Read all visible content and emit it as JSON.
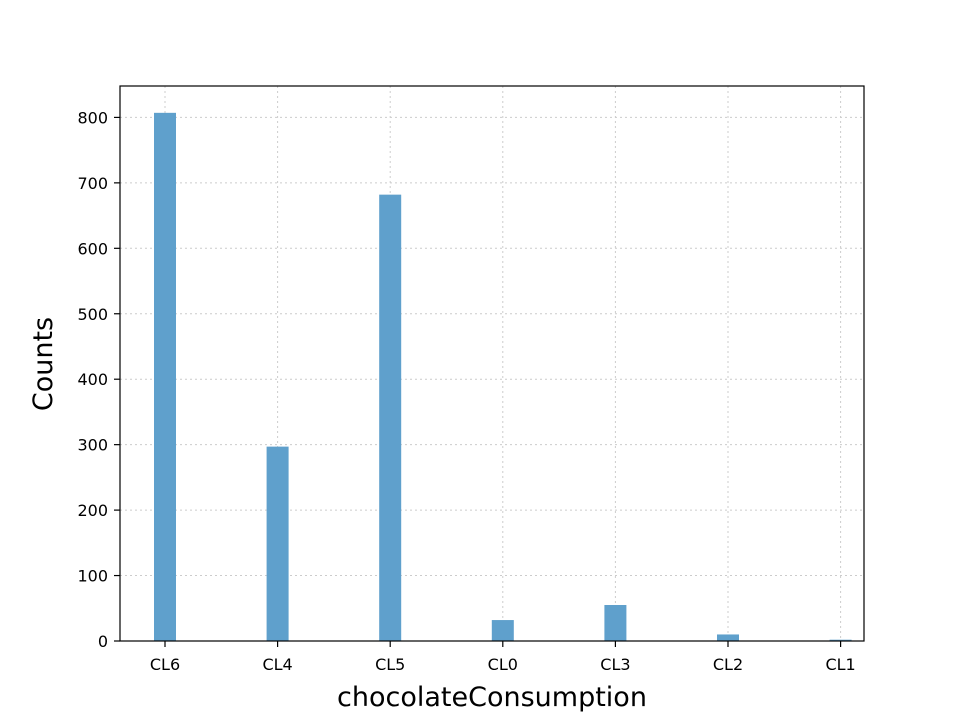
{
  "chart_data": {
    "type": "bar",
    "title": "",
    "xlabel": "chocolateConsumption",
    "ylabel": "Counts",
    "categories": [
      "CL6",
      "CL4",
      "CL5",
      "CL0",
      "CL3",
      "CL2",
      "CL1"
    ],
    "values": [
      807,
      297,
      682,
      32,
      55,
      10,
      2
    ],
    "yticks": [
      0,
      100,
      200,
      300,
      400,
      500,
      600,
      700,
      800
    ],
    "ylim": [
      0,
      848
    ],
    "grid": true,
    "legend": "none",
    "colors": {
      "bar": "#5fa0cc",
      "grid": "#cccccc",
      "axis": "#000000"
    }
  }
}
